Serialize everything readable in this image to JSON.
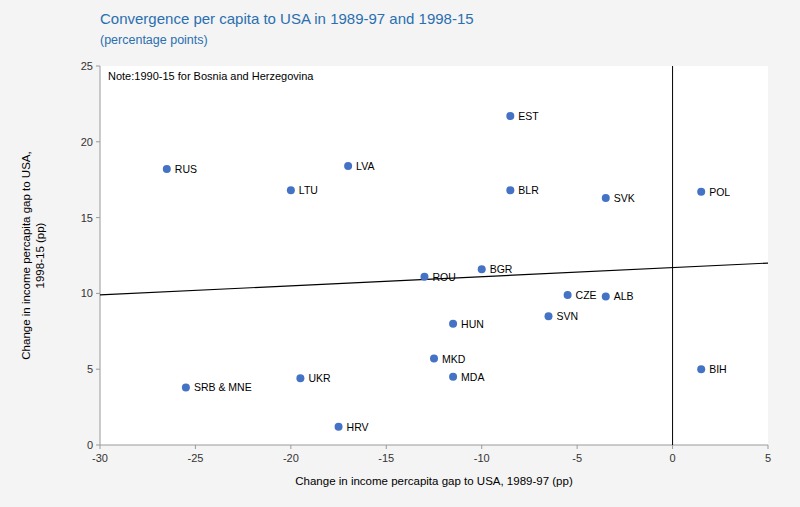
{
  "chart_data": {
    "type": "scatter",
    "title": "Convergence per capita to USA in 1989-97 and 1998-15",
    "subtitle": "(percentage points)",
    "xlabel": "Change in income percapita gap to USA, 1989-97 (pp)",
    "ylabel": "Change in income percapita gap to USA,\n1998-15 (pp)",
    "note": "Note:1990-15 for Bosnia and Herzegovina",
    "color": "#4472C4",
    "labels": [
      "RUS",
      "LTU",
      "LVA",
      "EST",
      "BLR",
      "SVK",
      "POL",
      "ROU",
      "BGR",
      "CZE",
      "SVN",
      "ALB",
      "HUN",
      "SRB & MNE",
      "UKR",
      "MKD",
      "MDA",
      "HRV",
      "BIH"
    ],
    "x": [
      -26.5,
      -20.0,
      -17.0,
      -8.5,
      -8.5,
      -3.5,
      1.5,
      -13.0,
      -10.0,
      -5.5,
      -6.5,
      -3.5,
      -11.5,
      -25.5,
      -19.5,
      -12.5,
      -11.5,
      -17.5,
      1.5
    ],
    "values": [
      18.2,
      16.8,
      18.4,
      21.7,
      16.8,
      16.3,
      16.7,
      11.1,
      11.6,
      9.9,
      8.5,
      9.8,
      8.0,
      3.8,
      4.4,
      5.7,
      4.5,
      1.2,
      5.0
    ],
    "trendline": {
      "x": [
        -30,
        5
      ],
      "values": [
        9.9,
        12.0
      ]
    },
    "vline_x": 0,
    "xlim": [
      -30,
      5
    ],
    "ylim": [
      0,
      25
    ],
    "xticks": [
      -30,
      -25,
      -20,
      -15,
      -10,
      -5,
      0,
      5
    ],
    "yticks": [
      0,
      5,
      10,
      15,
      20,
      25
    ]
  }
}
